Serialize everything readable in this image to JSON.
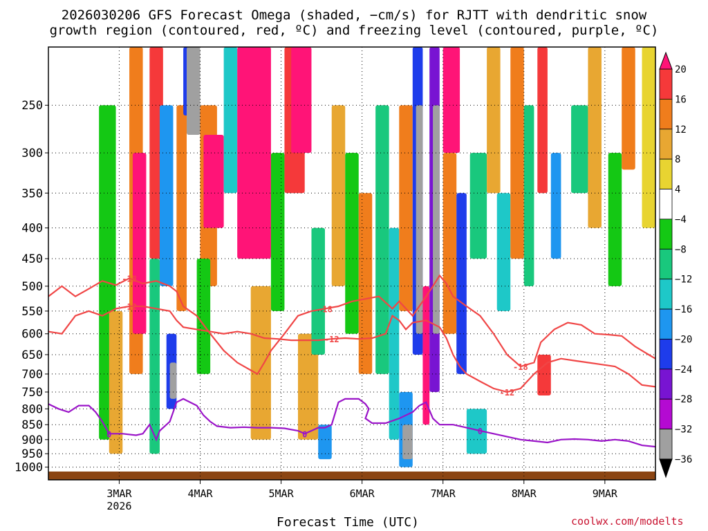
{
  "title": {
    "line1": "2026030206 GFS Forecast Omega (shaded, −cm/s) for RJTT with dendritic snow",
    "line2": "growth region (contoured, red, ºC) and freezing level (contoured, purple, ºC)"
  },
  "xaxis_title": "Forecast Time (UTC)",
  "watermark": "coolwx.com/modelts",
  "chart_data": {
    "type": "heatmap",
    "title": "2026030206 GFS Forecast Omega (shaded, −cm/s) for RJTT with dendritic snow growth region (contoured, red, ºC) and freezing level (contoured, purple, ºC)",
    "xlabel": "Forecast Time (UTC)",
    "ylabel": "",
    "y_scale": "log-pressure",
    "y_inverted": true,
    "ylim": [
      1050,
      200
    ],
    "y_ticks": [
      250,
      300,
      350,
      400,
      450,
      500,
      550,
      600,
      650,
      700,
      750,
      800,
      850,
      900,
      950,
      1000
    ],
    "x_ticks": [
      {
        "t": 21,
        "label": "3MAR",
        "sub": "2026"
      },
      {
        "t": 45,
        "label": "4MAR",
        "sub": ""
      },
      {
        "t": 69,
        "label": "5MAR",
        "sub": ""
      },
      {
        "t": 93,
        "label": "6MAR",
        "sub": ""
      },
      {
        "t": 117,
        "label": "7MAR",
        "sub": ""
      },
      {
        "t": 141,
        "label": "8MAR",
        "sub": ""
      },
      {
        "t": 165,
        "label": "9MAR",
        "sub": ""
      }
    ],
    "xlim": [
      0,
      180
    ],
    "grid": true,
    "colorbar": {
      "labels": [
        "20",
        "16",
        "12",
        "8",
        "4",
        "−4",
        "−8",
        "−12",
        "−16",
        "−20",
        "−24",
        "−28",
        "−32",
        "−36"
      ],
      "colors": [
        "#ff1477",
        "#f5393a",
        "#f07d1c",
        "#e8a732",
        "#e8d431",
        "#ffffff",
        "#14c814",
        "#19c87d",
        "#1ec8c8",
        "#1e96f0",
        "#1e3ceb",
        "#7814d2",
        "#b40ad2",
        "#a0a0a0",
        "#000000"
      ]
    },
    "omega_cells": [
      {
        "t0": 15,
        "t1": 20,
        "p0": 250,
        "p1": 900,
        "v": -8
      },
      {
        "t0": 18,
        "t1": 22,
        "p0": 550,
        "p1": 950,
        "v": 8
      },
      {
        "t0": 24,
        "t1": 28,
        "p0": 200,
        "p1": 700,
        "v": 12
      },
      {
        "t0": 25,
        "t1": 29,
        "p0": 300,
        "p1": 600,
        "v": 20
      },
      {
        "t0": 30,
        "t1": 34,
        "p0": 200,
        "p1": 450,
        "v": 16
      },
      {
        "t0": 30,
        "t1": 33,
        "p0": 450,
        "p1": 950,
        "v": -12
      },
      {
        "t0": 33,
        "t1": 37,
        "p0": 250,
        "p1": 500,
        "v": -20
      },
      {
        "t0": 35,
        "t1": 38,
        "p0": 600,
        "p1": 800,
        "v": -24
      },
      {
        "t0": 36,
        "t1": 38,
        "p0": 670,
        "p1": 770,
        "v": -36
      },
      {
        "t0": 38,
        "t1": 41,
        "p0": 250,
        "p1": 550,
        "v": 12
      },
      {
        "t0": 40,
        "t1": 42,
        "p0": 200,
        "p1": 260,
        "v": -24
      },
      {
        "t0": 41,
        "t1": 45,
        "p0": 200,
        "p1": 280,
        "v": -36
      },
      {
        "t0": 45,
        "t1": 50,
        "p0": 250,
        "p1": 500,
        "v": 12
      },
      {
        "t0": 46,
        "t1": 52,
        "p0": 280,
        "p1": 400,
        "v": 20
      },
      {
        "t0": 44,
        "t1": 48,
        "p0": 450,
        "p1": 700,
        "v": -8
      },
      {
        "t0": 52,
        "t1": 56,
        "p0": 200,
        "p1": 350,
        "v": -16
      },
      {
        "t0": 56,
        "t1": 66,
        "p0": 200,
        "p1": 450,
        "v": 20
      },
      {
        "t0": 60,
        "t1": 66,
        "p0": 500,
        "p1": 900,
        "v": 8
      },
      {
        "t0": 66,
        "t1": 70,
        "p0": 300,
        "p1": 550,
        "v": -8
      },
      {
        "t0": 70,
        "t1": 76,
        "p0": 200,
        "p1": 350,
        "v": 16
      },
      {
        "t0": 72,
        "t1": 78,
        "p0": 200,
        "p1": 300,
        "v": 20
      },
      {
        "t0": 74,
        "t1": 80,
        "p0": 600,
        "p1": 900,
        "v": 8
      },
      {
        "t0": 78,
        "t1": 82,
        "p0": 400,
        "p1": 650,
        "v": -12
      },
      {
        "t0": 80,
        "t1": 84,
        "p0": 850,
        "p1": 970,
        "v": -20
      },
      {
        "t0": 84,
        "t1": 88,
        "p0": 250,
        "p1": 500,
        "v": 8
      },
      {
        "t0": 88,
        "t1": 92,
        "p0": 300,
        "p1": 600,
        "v": -8
      },
      {
        "t0": 92,
        "t1": 96,
        "p0": 350,
        "p1": 700,
        "v": 12
      },
      {
        "t0": 97,
        "t1": 101,
        "p0": 250,
        "p1": 700,
        "v": -12
      },
      {
        "t0": 101,
        "t1": 104,
        "p0": 400,
        "p1": 900,
        "v": -16
      },
      {
        "t0": 104,
        "t1": 108,
        "p0": 250,
        "p1": 550,
        "v": 12
      },
      {
        "t0": 104,
        "t1": 108,
        "p0": 750,
        "p1": 1000,
        "v": -20
      },
      {
        "t0": 105,
        "t1": 108,
        "p0": 850,
        "p1": 970,
        "v": -36
      },
      {
        "t0": 108,
        "t1": 111,
        "p0": 200,
        "p1": 650,
        "v": -24
      },
      {
        "t0": 109,
        "t1": 111,
        "p0": 250,
        "p1": 600,
        "v": -36
      },
      {
        "t0": 111,
        "t1": 113,
        "p0": 500,
        "p1": 850,
        "v": 20
      },
      {
        "t0": 113,
        "t1": 116,
        "p0": 200,
        "p1": 750,
        "v": -28
      },
      {
        "t0": 114,
        "t1": 116,
        "p0": 250,
        "p1": 600,
        "v": -36
      },
      {
        "t0": 117,
        "t1": 122,
        "p0": 200,
        "p1": 300,
        "v": 20
      },
      {
        "t0": 117,
        "t1": 121,
        "p0": 300,
        "p1": 600,
        "v": 12
      },
      {
        "t0": 121,
        "t1": 124,
        "p0": 350,
        "p1": 700,
        "v": -24
      },
      {
        "t0": 125,
        "t1": 130,
        "p0": 300,
        "p1": 450,
        "v": -12
      },
      {
        "t0": 124,
        "t1": 130,
        "p0": 800,
        "p1": 950,
        "v": -16
      },
      {
        "t0": 130,
        "t1": 134,
        "p0": 200,
        "p1": 350,
        "v": 8
      },
      {
        "t0": 133,
        "t1": 137,
        "p0": 350,
        "p1": 550,
        "v": -16
      },
      {
        "t0": 137,
        "t1": 141,
        "p0": 200,
        "p1": 450,
        "v": 12
      },
      {
        "t0": 141,
        "t1": 144,
        "p0": 250,
        "p1": 500,
        "v": -12
      },
      {
        "t0": 145,
        "t1": 148,
        "p0": 200,
        "p1": 350,
        "v": 16
      },
      {
        "t0": 145,
        "t1": 149,
        "p0": 650,
        "p1": 760,
        "v": 16
      },
      {
        "t0": 149,
        "t1": 152,
        "p0": 300,
        "p1": 450,
        "v": -20
      },
      {
        "t0": 155,
        "t1": 160,
        "p0": 250,
        "p1": 350,
        "v": -12
      },
      {
        "t0": 160,
        "t1": 164,
        "p0": 200,
        "p1": 400,
        "v": 8
      },
      {
        "t0": 166,
        "t1": 170,
        "p0": 300,
        "p1": 500,
        "v": -8
      },
      {
        "t0": 170,
        "t1": 174,
        "p0": 200,
        "p1": 320,
        "v": 12
      },
      {
        "t0": 176,
        "t1": 180,
        "p0": 200,
        "p1": 400,
        "v": 4
      }
    ],
    "series": [
      {
        "name": "-18",
        "color": "#f04646",
        "points": [
          [
            0,
            520
          ],
          [
            4,
            500
          ],
          [
            8,
            520
          ],
          [
            12,
            505
          ],
          [
            16,
            490
          ],
          [
            20,
            498
          ],
          [
            24,
            485
          ],
          [
            28,
            495
          ],
          [
            32,
            490
          ],
          [
            36,
            500
          ],
          [
            38,
            510
          ],
          [
            40,
            540
          ],
          [
            44,
            560
          ],
          [
            48,
            600
          ],
          [
            52,
            640
          ],
          [
            56,
            670
          ],
          [
            60,
            690
          ],
          [
            62,
            700
          ],
          [
            64,
            670
          ],
          [
            66,
            640
          ],
          [
            70,
            600
          ],
          [
            74,
            560
          ],
          [
            78,
            550
          ],
          [
            82,
            545
          ],
          [
            86,
            540
          ],
          [
            90,
            530
          ],
          [
            94,
            525
          ],
          [
            98,
            520
          ],
          [
            102,
            545
          ],
          [
            104,
            530
          ],
          [
            108,
            560
          ],
          [
            112,
            520
          ],
          [
            114,
            500
          ],
          [
            116,
            480
          ],
          [
            118,
            495
          ],
          [
            120,
            520
          ],
          [
            124,
            540
          ],
          [
            128,
            560
          ],
          [
            132,
            600
          ],
          [
            136,
            650
          ],
          [
            140,
            680
          ],
          [
            144,
            670
          ],
          [
            146,
            620
          ],
          [
            150,
            590
          ],
          [
            154,
            575
          ],
          [
            158,
            580
          ],
          [
            162,
            600
          ],
          [
            166,
            602
          ],
          [
            170,
            605
          ],
          [
            174,
            630
          ],
          [
            178,
            650
          ],
          [
            180,
            660
          ]
        ]
      },
      {
        "name": "-12",
        "color": "#f04646",
        "points": [
          [
            0,
            595
          ],
          [
            4,
            600
          ],
          [
            8,
            560
          ],
          [
            12,
            550
          ],
          [
            16,
            560
          ],
          [
            20,
            545
          ],
          [
            24,
            540
          ],
          [
            28,
            540
          ],
          [
            32,
            545
          ],
          [
            36,
            550
          ],
          [
            38,
            570
          ],
          [
            40,
            585
          ],
          [
            44,
            590
          ],
          [
            48,
            595
          ],
          [
            52,
            600
          ],
          [
            56,
            595
          ],
          [
            60,
            600
          ],
          [
            64,
            610
          ],
          [
            68,
            612
          ],
          [
            72,
            615
          ],
          [
            76,
            615
          ],
          [
            80,
            615
          ],
          [
            84,
            612
          ],
          [
            88,
            610
          ],
          [
            92,
            612
          ],
          [
            96,
            610
          ],
          [
            100,
            600
          ],
          [
            102,
            560
          ],
          [
            104,
            570
          ],
          [
            106,
            590
          ],
          [
            108,
            575
          ],
          [
            112,
            570
          ],
          [
            116,
            585
          ],
          [
            118,
            610
          ],
          [
            120,
            650
          ],
          [
            122,
            680
          ],
          [
            124,
            700
          ],
          [
            128,
            720
          ],
          [
            132,
            740
          ],
          [
            136,
            750
          ],
          [
            140,
            740
          ],
          [
            144,
            700
          ],
          [
            148,
            670
          ],
          [
            152,
            660
          ],
          [
            156,
            665
          ],
          [
            160,
            670
          ],
          [
            164,
            675
          ],
          [
            168,
            680
          ],
          [
            172,
            700
          ],
          [
            176,
            730
          ],
          [
            180,
            735
          ]
        ]
      },
      {
        "name": "0",
        "color": "#9a14c8",
        "points": [
          [
            0,
            785
          ],
          [
            3,
            800
          ],
          [
            6,
            810
          ],
          [
            9,
            790
          ],
          [
            12,
            790
          ],
          [
            14,
            810
          ],
          [
            16,
            840
          ],
          [
            18,
            880
          ],
          [
            22,
            880
          ],
          [
            26,
            885
          ],
          [
            28,
            880
          ],
          [
            30,
            850
          ],
          [
            32,
            900
          ],
          [
            33,
            870
          ],
          [
            36,
            840
          ],
          [
            38,
            780
          ],
          [
            40,
            770
          ],
          [
            44,
            790
          ],
          [
            46,
            820
          ],
          [
            48,
            840
          ],
          [
            50,
            855
          ],
          [
            54,
            860
          ],
          [
            58,
            858
          ],
          [
            62,
            860
          ],
          [
            66,
            860
          ],
          [
            70,
            862
          ],
          [
            74,
            870
          ],
          [
            76,
            880
          ],
          [
            78,
            870
          ],
          [
            80,
            860
          ],
          [
            82,
            860
          ],
          [
            84,
            850
          ],
          [
            86,
            780
          ],
          [
            88,
            770
          ],
          [
            92,
            770
          ],
          [
            94,
            785
          ],
          [
            95,
            800
          ],
          [
            94,
            830
          ],
          [
            96,
            845
          ],
          [
            100,
            845
          ],
          [
            104,
            830
          ],
          [
            108,
            810
          ],
          [
            110,
            790
          ],
          [
            112,
            780
          ],
          [
            114,
            830
          ],
          [
            116,
            850
          ],
          [
            120,
            850
          ],
          [
            124,
            860
          ],
          [
            128,
            870
          ],
          [
            132,
            880
          ],
          [
            136,
            890
          ],
          [
            140,
            900
          ],
          [
            144,
            905
          ],
          [
            148,
            910
          ],
          [
            152,
            900
          ],
          [
            156,
            898
          ],
          [
            160,
            900
          ],
          [
            164,
            905
          ],
          [
            168,
            900
          ],
          [
            172,
            905
          ],
          [
            176,
            920
          ],
          [
            180,
            925
          ]
        ]
      }
    ]
  }
}
